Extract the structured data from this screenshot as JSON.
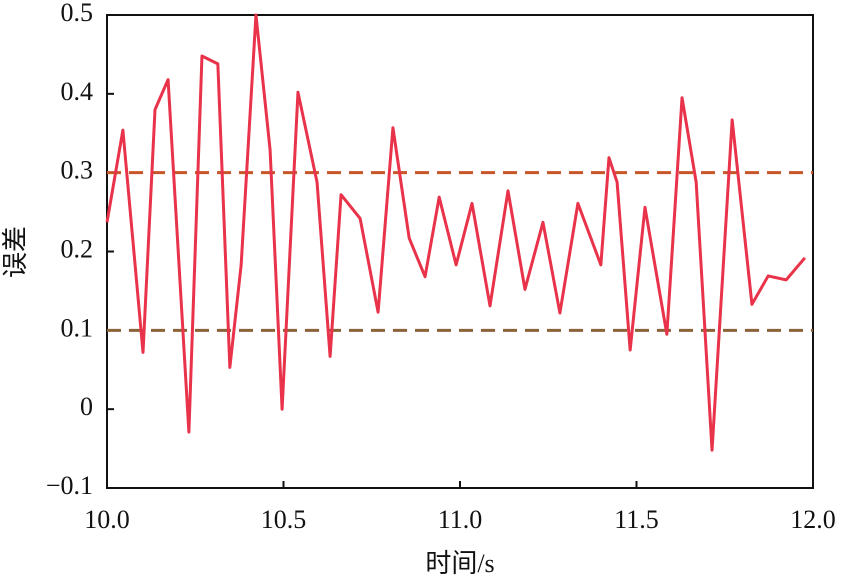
{
  "chart_data": {
    "type": "line",
    "xlabel": "时间/s",
    "ylabel": "误差",
    "xlim": [
      10.0,
      12.0
    ],
    "xticks": [
      {
        "value": 10.0,
        "label": "10.0"
      },
      10.5,
      {
        "value": 11.0,
        "label": "11.0"
      },
      11.5,
      {
        "value": 12.0,
        "label": "12.0"
      }
    ],
    "ylim": [
      -0.1,
      0.5
    ],
    "yticks": [
      {
        "value": -0.1,
        "label": "−0.1"
      },
      0,
      0.1,
      0.2,
      0.3,
      0.4,
      0.5
    ],
    "reference_lines": [
      {
        "value": 0.3,
        "color": "#c8552a"
      },
      {
        "value": 0.1,
        "color": "#8c6239"
      }
    ],
    "series": [
      {
        "color": "#e8334a",
        "x": [
          10.0,
          10.045,
          10.102,
          10.136,
          10.173,
          10.232,
          10.269,
          10.314,
          10.348,
          10.38,
          10.422,
          10.462,
          10.496,
          10.541,
          10.595,
          10.632,
          10.663,
          10.717,
          10.768,
          10.81,
          10.856,
          10.901,
          10.941,
          10.989,
          11.034,
          11.085,
          11.136,
          11.184,
          11.235,
          11.283,
          11.334,
          11.399,
          11.422,
          11.445,
          11.482,
          11.524,
          11.586,
          11.629,
          11.669,
          11.714,
          11.771,
          11.827,
          11.873,
          11.924,
          11.977
        ],
        "values": [
          0.237,
          0.354,
          0.072,
          0.38,
          0.418,
          -0.029,
          0.448,
          0.438,
          0.053,
          0.183,
          0.5,
          0.329,
          0.0,
          0.402,
          0.288,
          0.067,
          0.272,
          0.242,
          0.123,
          0.357,
          0.217,
          0.168,
          0.269,
          0.183,
          0.261,
          0.131,
          0.277,
          0.152,
          0.237,
          0.122,
          0.261,
          0.183,
          0.319,
          0.288,
          0.075,
          0.256,
          0.095,
          0.395,
          0.288,
          -0.052,
          0.367,
          0.133,
          0.169,
          0.164,
          0.192
        ]
      }
    ]
  }
}
